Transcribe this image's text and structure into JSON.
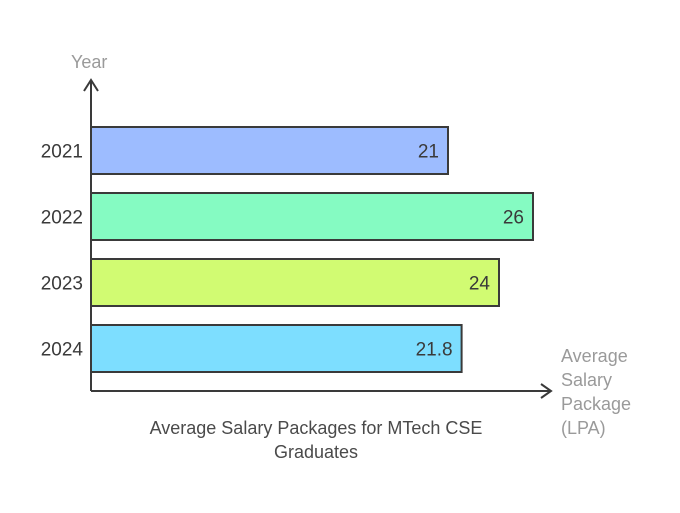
{
  "chart_data": {
    "type": "bar",
    "orientation": "horizontal",
    "categories": [
      "2021",
      "2022",
      "2023",
      "2024"
    ],
    "values": [
      21,
      26,
      24,
      21.8
    ],
    "value_labels": [
      "21",
      "26",
      "24",
      "21.8"
    ],
    "colors": [
      "#9dbcff",
      "#85fbc2",
      "#d1fb72",
      "#7ddeff"
    ],
    "title_lines": [
      "Average Salary Packages for MTech CSE",
      "Graduates"
    ],
    "ylabel": "Year",
    "xlabel_lines": [
      "Average",
      "Salary",
      "Package",
      "(LPA)"
    ],
    "xlim": [
      0,
      28
    ],
    "grid": false,
    "legend": "none"
  }
}
